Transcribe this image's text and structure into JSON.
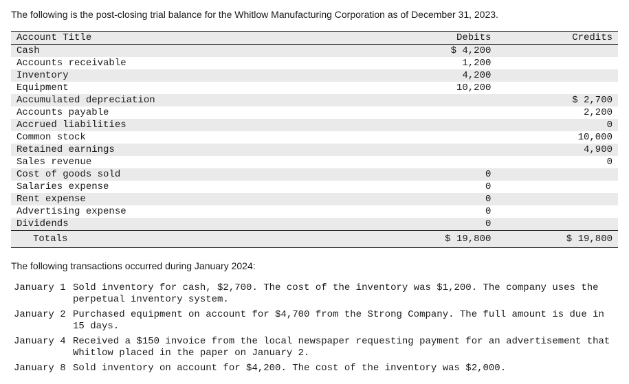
{
  "intro_text": "The following is the post-closing trial balance for the Whitlow Manufacturing Corporation as of December 31, 2023.",
  "table": {
    "headers": {
      "title": "Account Title",
      "debits": "Debits",
      "credits": "Credits"
    },
    "rows": [
      {
        "title": "Cash",
        "debit": "$ 4,200",
        "credit": ""
      },
      {
        "title": "Accounts receivable",
        "debit": "1,200",
        "credit": ""
      },
      {
        "title": "Inventory",
        "debit": "4,200",
        "credit": ""
      },
      {
        "title": "Equipment",
        "debit": "10,200",
        "credit": ""
      },
      {
        "title": "Accumulated depreciation",
        "debit": "",
        "credit": "$ 2,700"
      },
      {
        "title": "Accounts payable",
        "debit": "",
        "credit": "2,200"
      },
      {
        "title": "Accrued liabilities",
        "debit": "",
        "credit": "0"
      },
      {
        "title": "Common stock",
        "debit": "",
        "credit": "10,000"
      },
      {
        "title": "Retained earnings",
        "debit": "",
        "credit": "4,900"
      },
      {
        "title": "Sales revenue",
        "debit": "",
        "credit": "0"
      },
      {
        "title": "Cost of goods sold",
        "debit": "0",
        "credit": ""
      },
      {
        "title": "Salaries expense",
        "debit": "0",
        "credit": ""
      },
      {
        "title": "Rent expense",
        "debit": "0",
        "credit": ""
      },
      {
        "title": "Advertising expense",
        "debit": "0",
        "credit": ""
      },
      {
        "title": "Dividends",
        "debit": "0",
        "credit": ""
      }
    ],
    "totals": {
      "label": "Totals",
      "debit": "$ 19,800",
      "credit": "$ 19,800"
    }
  },
  "section2_text": "The following transactions occurred during January 2024:",
  "transactions": [
    {
      "date": "January 1",
      "desc": "Sold inventory for cash, $2,700. The cost of the inventory was $1,200. The company uses the perpetual inventory system."
    },
    {
      "date": "January 2",
      "desc": "Purchased equipment on account for $4,700 from the Strong Company. The full amount is due in 15 days."
    },
    {
      "date": "January 4",
      "desc": "Received a $150 invoice from the local newspaper requesting payment for an advertisement that Whitlow placed in the paper on January 2."
    },
    {
      "date": "January 8",
      "desc": "Sold inventory on account for $4,200. The cost of the inventory was $2,000."
    }
  ],
  "style": {
    "text_color": "#1a1a1a",
    "row_shade": "#eaeaea",
    "border": "#222222",
    "mono_font": "Courier New",
    "body_font": "Arial",
    "font_size_pt": 10.5
  }
}
